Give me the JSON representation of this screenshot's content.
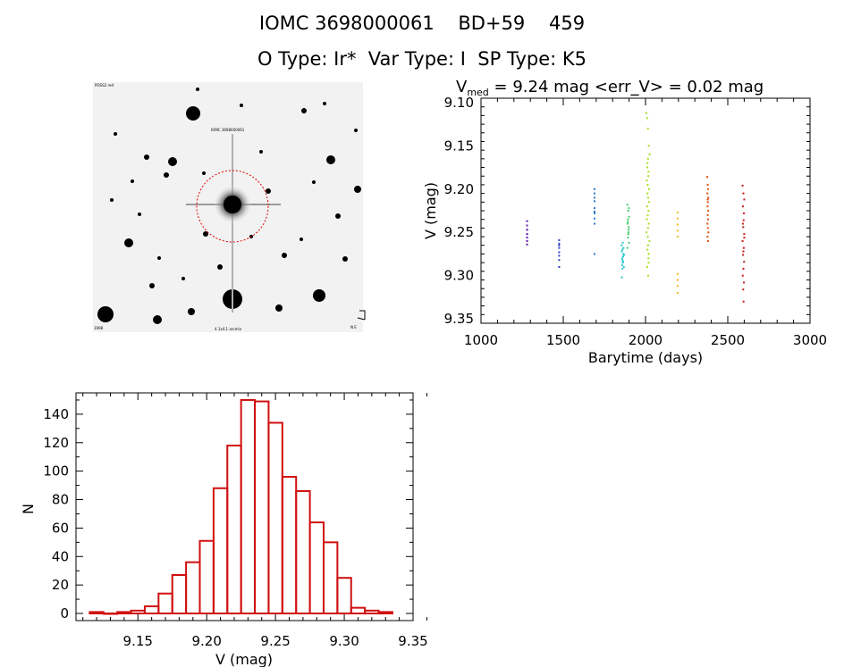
{
  "header": {
    "line1": "IOMC 3698000061    BD+59    459",
    "line2": "O Type: Ir*  Var Type: I  SP Type: K5"
  },
  "finder": {
    "label_topleft": "POSS2 red",
    "label_top": "IOMC 3698000061",
    "label_bottom": "4.1x4.1 arcmin",
    "label_bottomright": "N E",
    "label_bottomleft": "1998"
  },
  "colors": {
    "hist": "#d01010",
    "circle": "#e00000"
  },
  "chart_data": [
    {
      "type": "scatter",
      "title_main": "V",
      "title_sub": "med",
      "title_rest": " = 9.24 mag <err_V> = 0.02 mag",
      "xlabel": "Barytime (days)",
      "ylabel": "V (mag)",
      "xlim": [
        1000,
        3000
      ],
      "ylim": [
        9.355,
        9.095
      ],
      "xticks": [
        1000,
        1500,
        2000,
        2500,
        3000
      ],
      "yticks": [
        9.1,
        9.15,
        9.2,
        9.25,
        9.3,
        9.35
      ],
      "series": [
        {
          "color": "#5a1aa8",
          "x": [
            1280,
            1280,
            1280,
            1280,
            1280,
            1280,
            1280,
            1280,
            1280
          ],
          "y": [
            9.237,
            9.242,
            9.247,
            9.252,
            9.256,
            9.26,
            9.264,
            9.247,
            9.252
          ]
        },
        {
          "color": "#3040c0",
          "x": [
            1475,
            1475,
            1475,
            1475,
            1475,
            1475,
            1475,
            1475
          ],
          "y": [
            9.259,
            9.263,
            9.268,
            9.273,
            9.277,
            9.282,
            9.29,
            9.265
          ]
        },
        {
          "color": "#2878c8",
          "x": [
            1690,
            1690,
            1690,
            1690,
            1690,
            1690,
            1690,
            1690,
            1690,
            1690
          ],
          "y": [
            9.2,
            9.205,
            9.21,
            9.222,
            9.228,
            9.234,
            9.24,
            9.275,
            9.226,
            9.214
          ]
        },
        {
          "color": "#30c8d0",
          "x": [
            1855,
            1860,
            1865,
            1858,
            1862,
            1868,
            1856,
            1864,
            1860,
            1866,
            1858,
            1862,
            1870,
            1856,
            1864,
            1860
          ],
          "y": [
            9.265,
            9.27,
            9.275,
            9.28,
            9.285,
            9.29,
            9.272,
            9.278,
            9.282,
            9.268,
            9.288,
            9.262,
            9.276,
            9.302,
            9.284,
            9.292
          ]
        },
        {
          "color": "#40d070",
          "x": [
            1890,
            1895,
            1900,
            1892,
            1898,
            1896,
            1894,
            1900,
            1890,
            1897,
            1893,
            1899,
            1895,
            1891
          ],
          "y": [
            9.218,
            9.225,
            9.232,
            9.238,
            9.244,
            9.25,
            9.256,
            9.262,
            9.268,
            9.247,
            9.235,
            9.222,
            9.252,
            9.24
          ]
        },
        {
          "color": "#a8e020",
          "x": [
            2005,
            2010,
            2015,
            2020,
            2025,
            2012,
            2018,
            2008,
            2022,
            2016,
            2010,
            2014,
            2020,
            2006,
            2024,
            2012,
            2018,
            2010,
            2016,
            2022,
            2008,
            2014,
            2020,
            2012,
            2018,
            2015,
            2015,
            2013,
            2017,
            2011,
            2019,
            2015
          ],
          "y": [
            9.112,
            9.118,
            9.13,
            9.15,
            9.16,
            9.17,
            9.18,
            9.19,
            9.2,
            9.21,
            9.22,
            9.23,
            9.24,
            9.25,
            9.26,
            9.27,
            9.28,
            9.29,
            9.3,
            9.215,
            9.235,
            9.255,
            9.275,
            9.205,
            9.225,
            9.245,
            9.265,
            9.195,
            9.185,
            9.175,
            9.285,
            9.165
          ]
        },
        {
          "color": "#f0b820",
          "x": [
            2195,
            2195,
            2195,
            2195,
            2195,
            2195,
            2195,
            2195,
            2195
          ],
          "y": [
            9.227,
            9.234,
            9.241,
            9.248,
            9.255,
            9.298,
            9.305,
            9.312,
            9.32
          ]
        },
        {
          "color": "#e05010",
          "x": [
            2375,
            2378,
            2380,
            2376,
            2382,
            2379,
            2377,
            2381,
            2378,
            2380,
            2376,
            2379,
            2382,
            2377,
            2380,
            2378
          ],
          "y": [
            9.186,
            9.195,
            9.2,
            9.205,
            9.21,
            9.215,
            9.22,
            9.225,
            9.23,
            9.235,
            9.24,
            9.245,
            9.25,
            9.255,
            9.26,
            9.212
          ]
        },
        {
          "color": "#c81818",
          "x": [
            2590,
            2595,
            2600,
            2592,
            2598,
            2596,
            2594,
            2600,
            2590,
            2597,
            2593,
            2599,
            2595,
            2591,
            2598,
            2594,
            2596,
            2592,
            2600,
            2595
          ],
          "y": [
            9.196,
            9.205,
            9.212,
            9.22,
            9.228,
            9.236,
            9.244,
            9.252,
            9.26,
            9.268,
            9.276,
            9.284,
            9.292,
            9.3,
            9.308,
            9.316,
            9.33,
            9.24,
            9.256,
            9.272
          ]
        }
      ]
    },
    {
      "type": "bar",
      "xlabel": "V (mag)",
      "ylabel": "N",
      "xlim": [
        9.105,
        9.35
      ],
      "ylim": [
        -5,
        155
      ],
      "xticks": [
        9.15,
        9.2,
        9.25,
        9.3,
        9.35
      ],
      "yticks": [
        0,
        20,
        40,
        60,
        80,
        100,
        120,
        140
      ],
      "bin_width": 0.01,
      "bin_starts": [
        9.115,
        9.125,
        9.135,
        9.145,
        9.155,
        9.165,
        9.175,
        9.185,
        9.195,
        9.205,
        9.215,
        9.225,
        9.235,
        9.245,
        9.255,
        9.265,
        9.275,
        9.285,
        9.295,
        9.305,
        9.315,
        9.325
      ],
      "values": [
        1,
        0,
        1,
        2,
        5,
        14,
        27,
        36,
        51,
        88,
        118,
        150,
        149,
        134,
        96,
        86,
        64,
        50,
        25,
        4,
        2,
        1
      ]
    }
  ]
}
